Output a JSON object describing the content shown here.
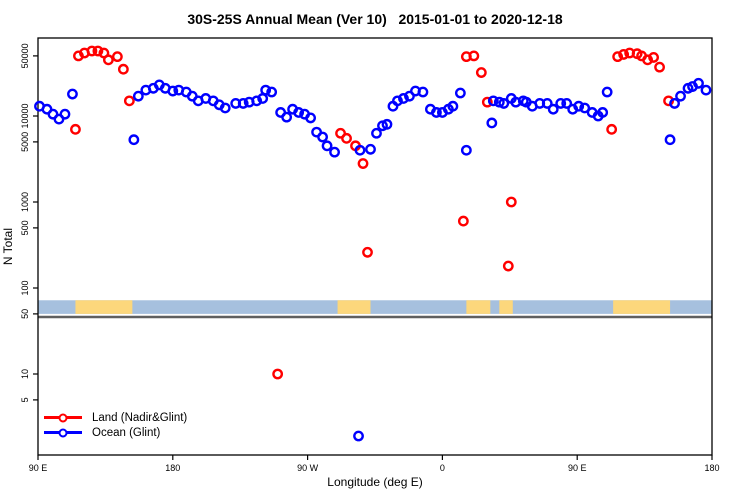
{
  "chart_data": {
    "type": "scatter",
    "title": "30S-25S Annual Mean (Ver 10)   2015-01-01 to 2020-12-18",
    "xlabel": "Longitude (deg E)",
    "ylabel": "N Total",
    "grid": false,
    "legend_position": "bottom-left-inside",
    "x_axis": {
      "description": "Longitude unwrapped eastward starting at 90E (90 to 540 = 180E second pass)",
      "range": [
        90,
        540
      ],
      "ticks": [
        90,
        180,
        270,
        360,
        450,
        540
      ],
      "tick_labels": [
        "90 E",
        "180",
        "90 W",
        "0",
        "90 E",
        "180"
      ]
    },
    "y_axis": {
      "scale": "log10",
      "range": [
        1.2,
        80000
      ],
      "ticks": [
        5,
        10,
        50,
        100,
        500,
        1000,
        5000,
        10000,
        50000
      ],
      "tick_labels": [
        "5",
        "10",
        "50",
        "100",
        "500",
        "1000",
        "5000",
        "10000",
        "50000"
      ]
    },
    "series": [
      {
        "name": "Land (Nadir&Glint)",
        "color": "#ff0000",
        "points": [
          [
            115,
            7000
          ],
          [
            117,
            50000
          ],
          [
            121,
            54000
          ],
          [
            126,
            57000
          ],
          [
            130,
            57000
          ],
          [
            134,
            54000
          ],
          [
            137,
            45000
          ],
          [
            143,
            49000
          ],
          [
            147,
            35000
          ],
          [
            151,
            15000
          ],
          [
            250,
            10
          ],
          [
            292,
            6300
          ],
          [
            296,
            5500
          ],
          [
            302,
            4500
          ],
          [
            307,
            2800
          ],
          [
            310,
            260
          ],
          [
            374,
            600
          ],
          [
            376,
            49000
          ],
          [
            381,
            50000
          ],
          [
            386,
            32000
          ],
          [
            390,
            14500
          ],
          [
            404,
            180
          ],
          [
            406,
            1000
          ],
          [
            473,
            7000
          ],
          [
            477,
            49000
          ],
          [
            481,
            52000
          ],
          [
            485,
            54000
          ],
          [
            490,
            53000
          ],
          [
            493,
            50000
          ],
          [
            497,
            45000
          ],
          [
            501,
            48000
          ],
          [
            505,
            37000
          ],
          [
            511,
            15000
          ]
        ]
      },
      {
        "name": "Ocean (Glint)",
        "color": "#0000ff",
        "points": [
          [
            91,
            13000
          ],
          [
            96,
            12000
          ],
          [
            100,
            10500
          ],
          [
            104,
            9200
          ],
          [
            108,
            10500
          ],
          [
            113,
            18000
          ],
          [
            154,
            5300
          ],
          [
            157,
            17000
          ],
          [
            162,
            20000
          ],
          [
            167,
            21000
          ],
          [
            171,
            23000
          ],
          [
            175,
            21000
          ],
          [
            180,
            19500
          ],
          [
            184,
            20000
          ],
          [
            189,
            19000
          ],
          [
            193,
            17000
          ],
          [
            197,
            15000
          ],
          [
            202,
            16000
          ],
          [
            207,
            15000
          ],
          [
            211,
            13500
          ],
          [
            215,
            12400
          ],
          [
            222,
            14000
          ],
          [
            227,
            14000
          ],
          [
            231,
            14500
          ],
          [
            236,
            15000
          ],
          [
            240,
            16000
          ],
          [
            242,
            20000
          ],
          [
            246,
            19000
          ],
          [
            252,
            11000
          ],
          [
            256,
            9700
          ],
          [
            260,
            12000
          ],
          [
            264,
            11000
          ],
          [
            268,
            10500
          ],
          [
            272,
            9500
          ],
          [
            276,
            6500
          ],
          [
            280,
            5700
          ],
          [
            283,
            4500
          ],
          [
            288,
            3800
          ],
          [
            304,
            1.9
          ],
          [
            305,
            4000
          ],
          [
            312,
            4100
          ],
          [
            316,
            6300
          ],
          [
            320,
            7700
          ],
          [
            323,
            8000
          ],
          [
            327,
            13000
          ],
          [
            330,
            15000
          ],
          [
            334,
            16000
          ],
          [
            338,
            17000
          ],
          [
            342,
            19500
          ],
          [
            347,
            19000
          ],
          [
            352,
            12000
          ],
          [
            356,
            11000
          ],
          [
            360,
            11000
          ],
          [
            364,
            12000
          ],
          [
            367,
            13000
          ],
          [
            372,
            18500
          ],
          [
            376,
            4000
          ],
          [
            393,
            8300
          ],
          [
            394,
            15000
          ],
          [
            398,
            14500
          ],
          [
            401,
            14000
          ],
          [
            406,
            16000
          ],
          [
            409,
            14500
          ],
          [
            414,
            15000
          ],
          [
            416,
            14500
          ],
          [
            420,
            13000
          ],
          [
            425,
            14000
          ],
          [
            430,
            14000
          ],
          [
            434,
            12000
          ],
          [
            439,
            14000
          ],
          [
            443,
            14000
          ],
          [
            447,
            12000
          ],
          [
            451,
            13000
          ],
          [
            455,
            12400
          ],
          [
            460,
            11000
          ],
          [
            464,
            10000
          ],
          [
            467,
            11000
          ],
          [
            470,
            19000
          ],
          [
            512,
            5300
          ],
          [
            515,
            14000
          ],
          [
            519,
            17000
          ],
          [
            524,
            21000
          ],
          [
            527,
            22000
          ],
          [
            531,
            24000
          ],
          [
            536,
            20000
          ]
        ]
      }
    ],
    "land_ocean_strip": {
      "description": "horizontal map strip near y=50-70 showing land/ocean along longitude",
      "value_range": [
        50,
        72
      ],
      "ocean_color": "#a6c0de",
      "land_color": "#fcd77c",
      "land_segments_deg": [
        [
          115,
          153
        ],
        [
          290,
          312
        ],
        [
          376,
          392
        ],
        [
          398,
          407
        ],
        [
          474,
          512
        ]
      ]
    },
    "reference_line": {
      "value": 46,
      "color": "#5f5f5f"
    }
  }
}
